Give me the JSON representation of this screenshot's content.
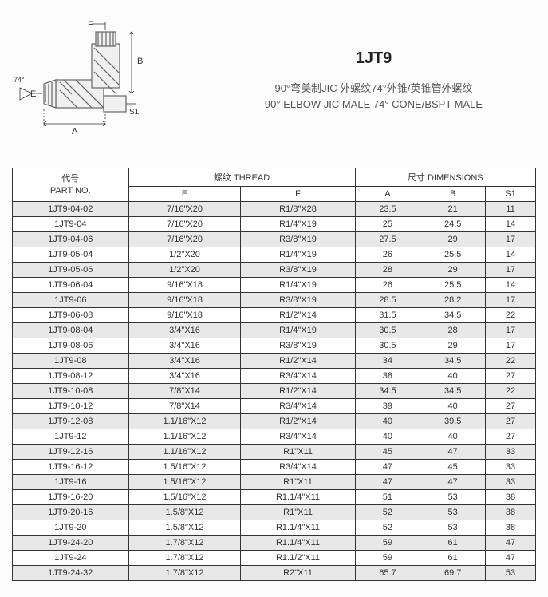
{
  "title": {
    "product_code": "1JT9",
    "desc_cn": "90°弯美制JIC 外螺纹74°外锥/英锥管外螺纹",
    "desc_en": "90° ELBOW JIC MALE 74° CONE/BSPT MALE"
  },
  "diagram_labels": {
    "F": "F",
    "B": "B",
    "E": "E",
    "A": "A",
    "S1": "S1",
    "angle": "74°"
  },
  "table": {
    "headers": {
      "partno_cn": "代号",
      "partno_en": "PART NO.",
      "thread_cn": "螺纹",
      "thread_en": "THREAD",
      "dim_cn": "尺寸",
      "dim_en": "DIMENSIONS",
      "E": "E",
      "F": "F",
      "A": "A",
      "B": "B",
      "S1": "S1"
    },
    "rows": [
      {
        "part": "1JT9-04-02",
        "E": "7/16\"X20",
        "F": "R1/8\"X28",
        "A": "23.5",
        "B": "21",
        "S1": "11"
      },
      {
        "part": "1JT9-04",
        "E": "7/16\"X20",
        "F": "R1/4\"X19",
        "A": "25",
        "B": "24.5",
        "S1": "14"
      },
      {
        "part": "1JT9-04-06",
        "E": "7/16\"X20",
        "F": "R3/8\"X19",
        "A": "27.5",
        "B": "29",
        "S1": "17"
      },
      {
        "part": "1JT9-05-04",
        "E": "1/2\"X20",
        "F": "R1/4\"X19",
        "A": "26",
        "B": "25.5",
        "S1": "14"
      },
      {
        "part": "1JT9-05-06",
        "E": "1/2\"X20",
        "F": "R3/8\"X19",
        "A": "28",
        "B": "29",
        "S1": "17"
      },
      {
        "part": "1JT9-06-04",
        "E": "9/16\"X18",
        "F": "R1/4\"X19",
        "A": "26",
        "B": "25.5",
        "S1": "14"
      },
      {
        "part": "1JT9-06",
        "E": "9/16\"X18",
        "F": "R3/8\"X19",
        "A": "28.5",
        "B": "28.2",
        "S1": "17"
      },
      {
        "part": "1JT9-06-08",
        "E": "9/16\"X18",
        "F": "R1/2\"X14",
        "A": "31.5",
        "B": "34.5",
        "S1": "22"
      },
      {
        "part": "1JT9-08-04",
        "E": "3/4\"X16",
        "F": "R1/4\"X19",
        "A": "30.5",
        "B": "28",
        "S1": "17"
      },
      {
        "part": "1JT9-08-06",
        "E": "3/4\"X16",
        "F": "R3/8\"X19",
        "A": "30.5",
        "B": "29",
        "S1": "17"
      },
      {
        "part": "1JT9-08",
        "E": "3/4\"X16",
        "F": "R1/2\"X14",
        "A": "34",
        "B": "34.5",
        "S1": "22"
      },
      {
        "part": "1JT9-08-12",
        "E": "3/4\"X16",
        "F": "R3/4\"X14",
        "A": "38",
        "B": "40",
        "S1": "27"
      },
      {
        "part": "1JT9-10-08",
        "E": "7/8\"X14",
        "F": "R1/2\"X14",
        "A": "34.5",
        "B": "34.5",
        "S1": "22"
      },
      {
        "part": "1JT9-10-12",
        "E": "7/8\"X14",
        "F": "R3/4\"X14",
        "A": "39",
        "B": "40",
        "S1": "27"
      },
      {
        "part": "1JT9-12-08",
        "E": "1.1/16\"X12",
        "F": "R1/2\"X14",
        "A": "40",
        "B": "39.5",
        "S1": "27"
      },
      {
        "part": "1JT9-12",
        "E": "1.1/16\"X12",
        "F": "R3/4\"X14",
        "A": "40",
        "B": "40",
        "S1": "27"
      },
      {
        "part": "1JT9-12-16",
        "E": "1.1/16\"X12",
        "F": "R1\"X11",
        "A": "45",
        "B": "47",
        "S1": "33"
      },
      {
        "part": "1JT9-16-12",
        "E": "1.5/16\"X12",
        "F": "R3/4\"X14",
        "A": "47",
        "B": "45",
        "S1": "33"
      },
      {
        "part": "1JT9-16",
        "E": "1.5/16\"X12",
        "F": "R1\"X11",
        "A": "47",
        "B": "47",
        "S1": "33"
      },
      {
        "part": "1JT9-16-20",
        "E": "1.5/16\"X12",
        "F": "R1.1/4\"X11",
        "A": "51",
        "B": "53",
        "S1": "38"
      },
      {
        "part": "1JT9-20-16",
        "E": "1.5/8\"X12",
        "F": "R1\"X11",
        "A": "52",
        "B": "53",
        "S1": "38"
      },
      {
        "part": "1JT9-20",
        "E": "1.5/8\"X12",
        "F": "R1.1/4\"X11",
        "A": "52",
        "B": "53",
        "S1": "38"
      },
      {
        "part": "1JT9-24-20",
        "E": "1.7/8\"X12",
        "F": "R1.1/4\"X11",
        "A": "59",
        "B": "61",
        "S1": "47"
      },
      {
        "part": "1JT9-24",
        "E": "1.7/8\"X12",
        "F": "R1.1/2\"X11",
        "A": "59",
        "B": "61",
        "S1": "47"
      },
      {
        "part": "1JT9-24-32",
        "E": "1.7/8\"X12",
        "F": "R2\"X11",
        "A": "65.7",
        "B": "69.7",
        "S1": "53"
      }
    ]
  },
  "styling": {
    "font_family": "Arial",
    "body_font_size": 11,
    "title_font_size": 20,
    "desc_font_size": 13,
    "border_color": "#333333",
    "alt_row_bg": "#e8e8e8",
    "row_bg": "#ffffff",
    "text_color": "#333333"
  }
}
